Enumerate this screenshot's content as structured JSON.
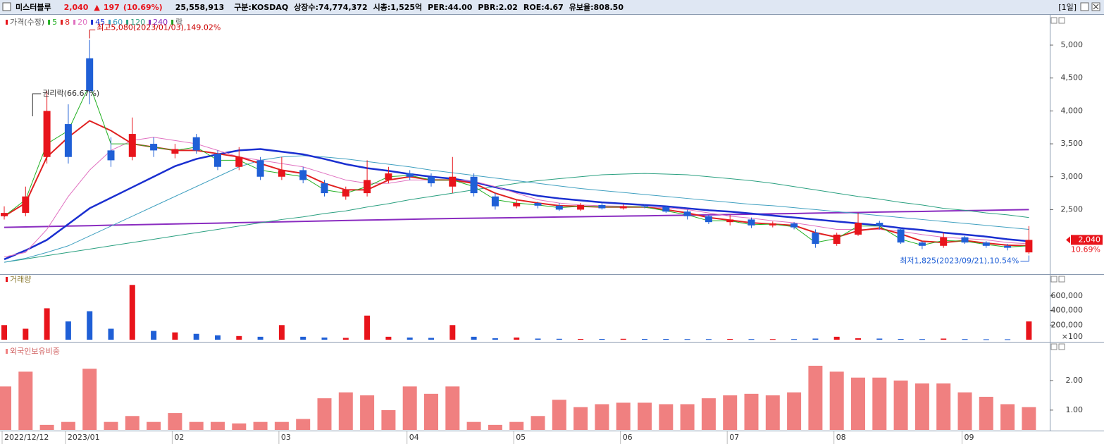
{
  "header": {
    "name": "미스터블루",
    "price": "2,040",
    "arrow": "▲",
    "change": "197",
    "change_pct": "(10.69%)",
    "volume": "25,558,913",
    "info": [
      "구분:KOSDAQ",
      "상장수:74,774,372",
      "시총:1,525억",
      "PER:44.00",
      "PBR:2.02",
      "ROE:4.67",
      "유보율:808.50"
    ],
    "period": "[1일]"
  },
  "chart_data": [
    {
      "type": "candlestick",
      "legend_label": "가격(수정)",
      "legend_extra": "락",
      "up_color": "#e8141b",
      "down_color": "#1f5fd6",
      "categories": [
        "2022/12/12",
        null,
        null,
        "2023/01",
        null,
        null,
        null,
        null,
        "02",
        null,
        null,
        null,
        null,
        "03",
        null,
        null,
        null,
        null,
        null,
        "04",
        null,
        null,
        null,
        null,
        "05",
        null,
        null,
        null,
        null,
        "06",
        null,
        null,
        null,
        null,
        "07",
        null,
        null,
        null,
        null,
        "08",
        null,
        null,
        null,
        null,
        null,
        "09",
        null,
        null,
        null
      ],
      "open": [
        2400,
        2450,
        3300,
        3800,
        4800,
        3400,
        3300,
        3500,
        3350,
        3600,
        3350,
        3150,
        3250,
        3000,
        3100,
        2900,
        2700,
        2750,
        2950,
        3050,
        3000,
        2850,
        3000,
        2700,
        2550,
        2600,
        2560,
        2500,
        2570,
        2520,
        2550,
        2540,
        2470,
        2400,
        2310,
        2350,
        2260,
        2290,
        2150,
        1980,
        2120,
        2300,
        2200,
        2000,
        1950,
        2080,
        2000,
        1950,
        1850
      ],
      "high": [
        2550,
        2850,
        4300,
        4100,
        5080,
        3600,
        3900,
        3600,
        3500,
        3650,
        3400,
        3450,
        3300,
        3300,
        3150,
        2950,
        2850,
        3250,
        3150,
        3100,
        3050,
        3300,
        3050,
        2750,
        2650,
        2620,
        2600,
        2600,
        2600,
        2580,
        2580,
        2560,
        2500,
        2420,
        2420,
        2380,
        2320,
        2310,
        2200,
        2150,
        2450,
        2330,
        2220,
        2020,
        2150,
        2100,
        2020,
        1980,
        2250
      ],
      "low": [
        2350,
        2400,
        3200,
        3200,
        4100,
        3150,
        3250,
        3300,
        3280,
        3350,
        3100,
        3100,
        2950,
        2950,
        2900,
        2700,
        2650,
        2700,
        2900,
        2950,
        2850,
        2750,
        2700,
        2500,
        2520,
        2520,
        2480,
        2480,
        2500,
        2500,
        2520,
        2450,
        2350,
        2280,
        2260,
        2220,
        2230,
        2200,
        1920,
        1950,
        2100,
        2200,
        1980,
        1900,
        1920,
        1980,
        1920,
        1880,
        1825
      ],
      "close": [
        2450,
        2700,
        4000,
        3300,
        4300,
        3250,
        3650,
        3400,
        3420,
        3400,
        3150,
        3300,
        3000,
        3100,
        2950,
        2750,
        2800,
        2950,
        3050,
        3000,
        2900,
        3000,
        2750,
        2550,
        2600,
        2560,
        2500,
        2570,
        2520,
        2550,
        2540,
        2470,
        2400,
        2310,
        2350,
        2260,
        2290,
        2230,
        1980,
        2120,
        2300,
        2250,
        2000,
        1950,
        2080,
        2000,
        1950,
        1920,
        2040
      ],
      "series": [
        {
          "name": "5",
          "color": "#22b022",
          "width": 1,
          "values": [
            2400,
            2650,
            3500,
            3700,
            4400,
            3500,
            3500,
            3450,
            3400,
            3450,
            3250,
            3250,
            3100,
            3050,
            3000,
            2800,
            2750,
            2850,
            3000,
            3020,
            2950,
            2950,
            2850,
            2650,
            2600,
            2570,
            2530,
            2550,
            2540,
            2540,
            2540,
            2480,
            2420,
            2330,
            2330,
            2270,
            2280,
            2240,
            2000,
            2060,
            2250,
            2250,
            2050,
            1960,
            2030,
            2020,
            1970,
            1930,
            1950
          ]
        },
        {
          "name": "8",
          "color": "#e02020",
          "width": 2,
          "values": [
            2400,
            2600,
            3300,
            3600,
            3850,
            3700,
            3500,
            3450,
            3400,
            3400,
            3350,
            3300,
            3200,
            3100,
            3050,
            2900,
            2800,
            2800,
            2950,
            3000,
            2950,
            2950,
            2900,
            2750,
            2650,
            2600,
            2560,
            2550,
            2540,
            2540,
            2540,
            2500,
            2450,
            2380,
            2340,
            2300,
            2280,
            2260,
            2150,
            2080,
            2180,
            2220,
            2130,
            2020,
            2000,
            2030,
            1990,
            1960,
            1950
          ]
        },
        {
          "name": "20",
          "color": "#e070c0",
          "width": 1,
          "values": [
            1780,
            1850,
            2200,
            2700,
            3100,
            3400,
            3550,
            3600,
            3550,
            3500,
            3400,
            3300,
            3250,
            3200,
            3150,
            3050,
            2950,
            2900,
            2900,
            2950,
            2950,
            2950,
            2930,
            2850,
            2750,
            2650,
            2600,
            2570,
            2560,
            2550,
            2540,
            2530,
            2500,
            2450,
            2400,
            2370,
            2330,
            2300,
            2250,
            2200,
            2200,
            2200,
            2170,
            2120,
            2080,
            2060,
            2040,
            2000,
            1980
          ]
        },
        {
          "name": "45",
          "color": "#1a2fd0",
          "width": 2.5,
          "values": [
            1745,
            1880,
            2040,
            2280,
            2520,
            2680,
            2840,
            3000,
            3160,
            3270,
            3340,
            3400,
            3420,
            3380,
            3340,
            3270,
            3190,
            3130,
            3090,
            3040,
            3000,
            2970,
            2920,
            2840,
            2770,
            2710,
            2670,
            2640,
            2610,
            2590,
            2570,
            2550,
            2520,
            2490,
            2470,
            2440,
            2410,
            2380,
            2350,
            2320,
            2290,
            2260,
            2220,
            2190,
            2150,
            2120,
            2090,
            2050,
            2020
          ]
        },
        {
          "name": "60",
          "color": "#40a0c0",
          "width": 1,
          "values": [
            1700,
            1760,
            1850,
            1950,
            2100,
            2250,
            2400,
            2550,
            2700,
            2850,
            3000,
            3150,
            3250,
            3300,
            3320,
            3300,
            3270,
            3230,
            3190,
            3150,
            3100,
            3060,
            3020,
            2980,
            2940,
            2900,
            2860,
            2820,
            2790,
            2760,
            2730,
            2700,
            2670,
            2640,
            2610,
            2580,
            2560,
            2530,
            2500,
            2470,
            2440,
            2410,
            2380,
            2350,
            2320,
            2290,
            2260,
            2230,
            2200
          ]
        },
        {
          "name": "120",
          "color": "#2aa080",
          "width": 1,
          "values": [
            1700,
            1750,
            1800,
            1850,
            1900,
            1950,
            2000,
            2050,
            2100,
            2150,
            2200,
            2250,
            2300,
            2350,
            2390,
            2440,
            2480,
            2540,
            2590,
            2650,
            2700,
            2750,
            2800,
            2850,
            2900,
            2940,
            2970,
            3000,
            3030,
            3040,
            3050,
            3040,
            3030,
            3000,
            2970,
            2940,
            2900,
            2850,
            2800,
            2750,
            2700,
            2660,
            2610,
            2570,
            2520,
            2490,
            2450,
            2420,
            2380
          ]
        },
        {
          "name": "240",
          "color": "#8a2cc0",
          "width": 2,
          "values": [
            2230,
            2237,
            2243,
            2250,
            2256,
            2263,
            2269,
            2276,
            2282,
            2289,
            2295,
            2302,
            2308,
            2315,
            2321,
            2328,
            2334,
            2341,
            2347,
            2354,
            2360,
            2365,
            2369,
            2374,
            2378,
            2383,
            2388,
            2392,
            2397,
            2402,
            2406,
            2411,
            2415,
            2420,
            2425,
            2431,
            2436,
            2441,
            2447,
            2452,
            2457,
            2463,
            2468,
            2473,
            2479,
            2484,
            2489,
            2495,
            2500
          ]
        }
      ],
      "annotations": {
        "high": "최고5,080(2023/01/03),149.02%",
        "rights": "권리락(66.67%)",
        "low": "최저1,825(2023/09/21),10.54%"
      },
      "price_tag": {
        "value": 2040,
        "label": "2,040"
      },
      "change_tag": "10.69%",
      "ylim": [
        1530,
        5450
      ],
      "yticks": [
        {
          "value": 2500,
          "label": "2,500"
        },
        {
          "value": 3000,
          "label": "3,000"
        },
        {
          "value": 3500,
          "label": "3,500"
        },
        {
          "value": 4000,
          "label": "4,000"
        },
        {
          "value": 4500,
          "label": "4,500"
        },
        {
          "value": 5000,
          "label": "5,000"
        }
      ]
    },
    {
      "type": "bar",
      "title": "거래량",
      "unit": "×100",
      "color": "#e8141b",
      "values": [
        200000,
        150000,
        430000,
        250000,
        390000,
        150000,
        750000,
        120000,
        100000,
        80000,
        60000,
        50000,
        40000,
        200000,
        40000,
        30000,
        25000,
        330000,
        40000,
        30000,
        25000,
        200000,
        40000,
        20000,
        30000,
        15000,
        12000,
        10000,
        10000,
        12000,
        10000,
        10000,
        8000,
        8000,
        10000,
        8000,
        8000,
        8000,
        15000,
        40000,
        20000,
        15000,
        10000,
        8000,
        15000,
        8000,
        6000,
        6000,
        250000
      ],
      "ylim": [
        0,
        830000
      ],
      "yticks": [
        {
          "value": 200000,
          "label": "200,000"
        },
        {
          "value": 400000,
          "label": "400,000"
        },
        {
          "value": 600000,
          "label": "600,000"
        }
      ]
    },
    {
      "type": "bar",
      "title": "외국인보유비중",
      "color": "#f08080",
      "values": [
        1.8,
        2.3,
        0.5,
        0.6,
        2.4,
        0.6,
        0.8,
        0.6,
        0.9,
        0.6,
        0.6,
        0.55,
        0.6,
        0.6,
        0.7,
        1.4,
        1.6,
        1.5,
        1.0,
        1.8,
        1.55,
        1.8,
        0.6,
        0.5,
        0.6,
        0.8,
        1.35,
        1.1,
        1.2,
        1.25,
        1.25,
        1.2,
        1.2,
        1.4,
        1.5,
        1.55,
        1.5,
        1.6,
        2.5,
        2.3,
        2.1,
        2.1,
        2.0,
        1.9,
        1.9,
        1.6,
        1.45,
        1.2,
        1.1
      ],
      "ylim": [
        0.33,
        3.0
      ],
      "yticks": [
        {
          "value": 1,
          "label": "1.00"
        },
        {
          "value": 2,
          "label": "2.00"
        }
      ]
    }
  ]
}
